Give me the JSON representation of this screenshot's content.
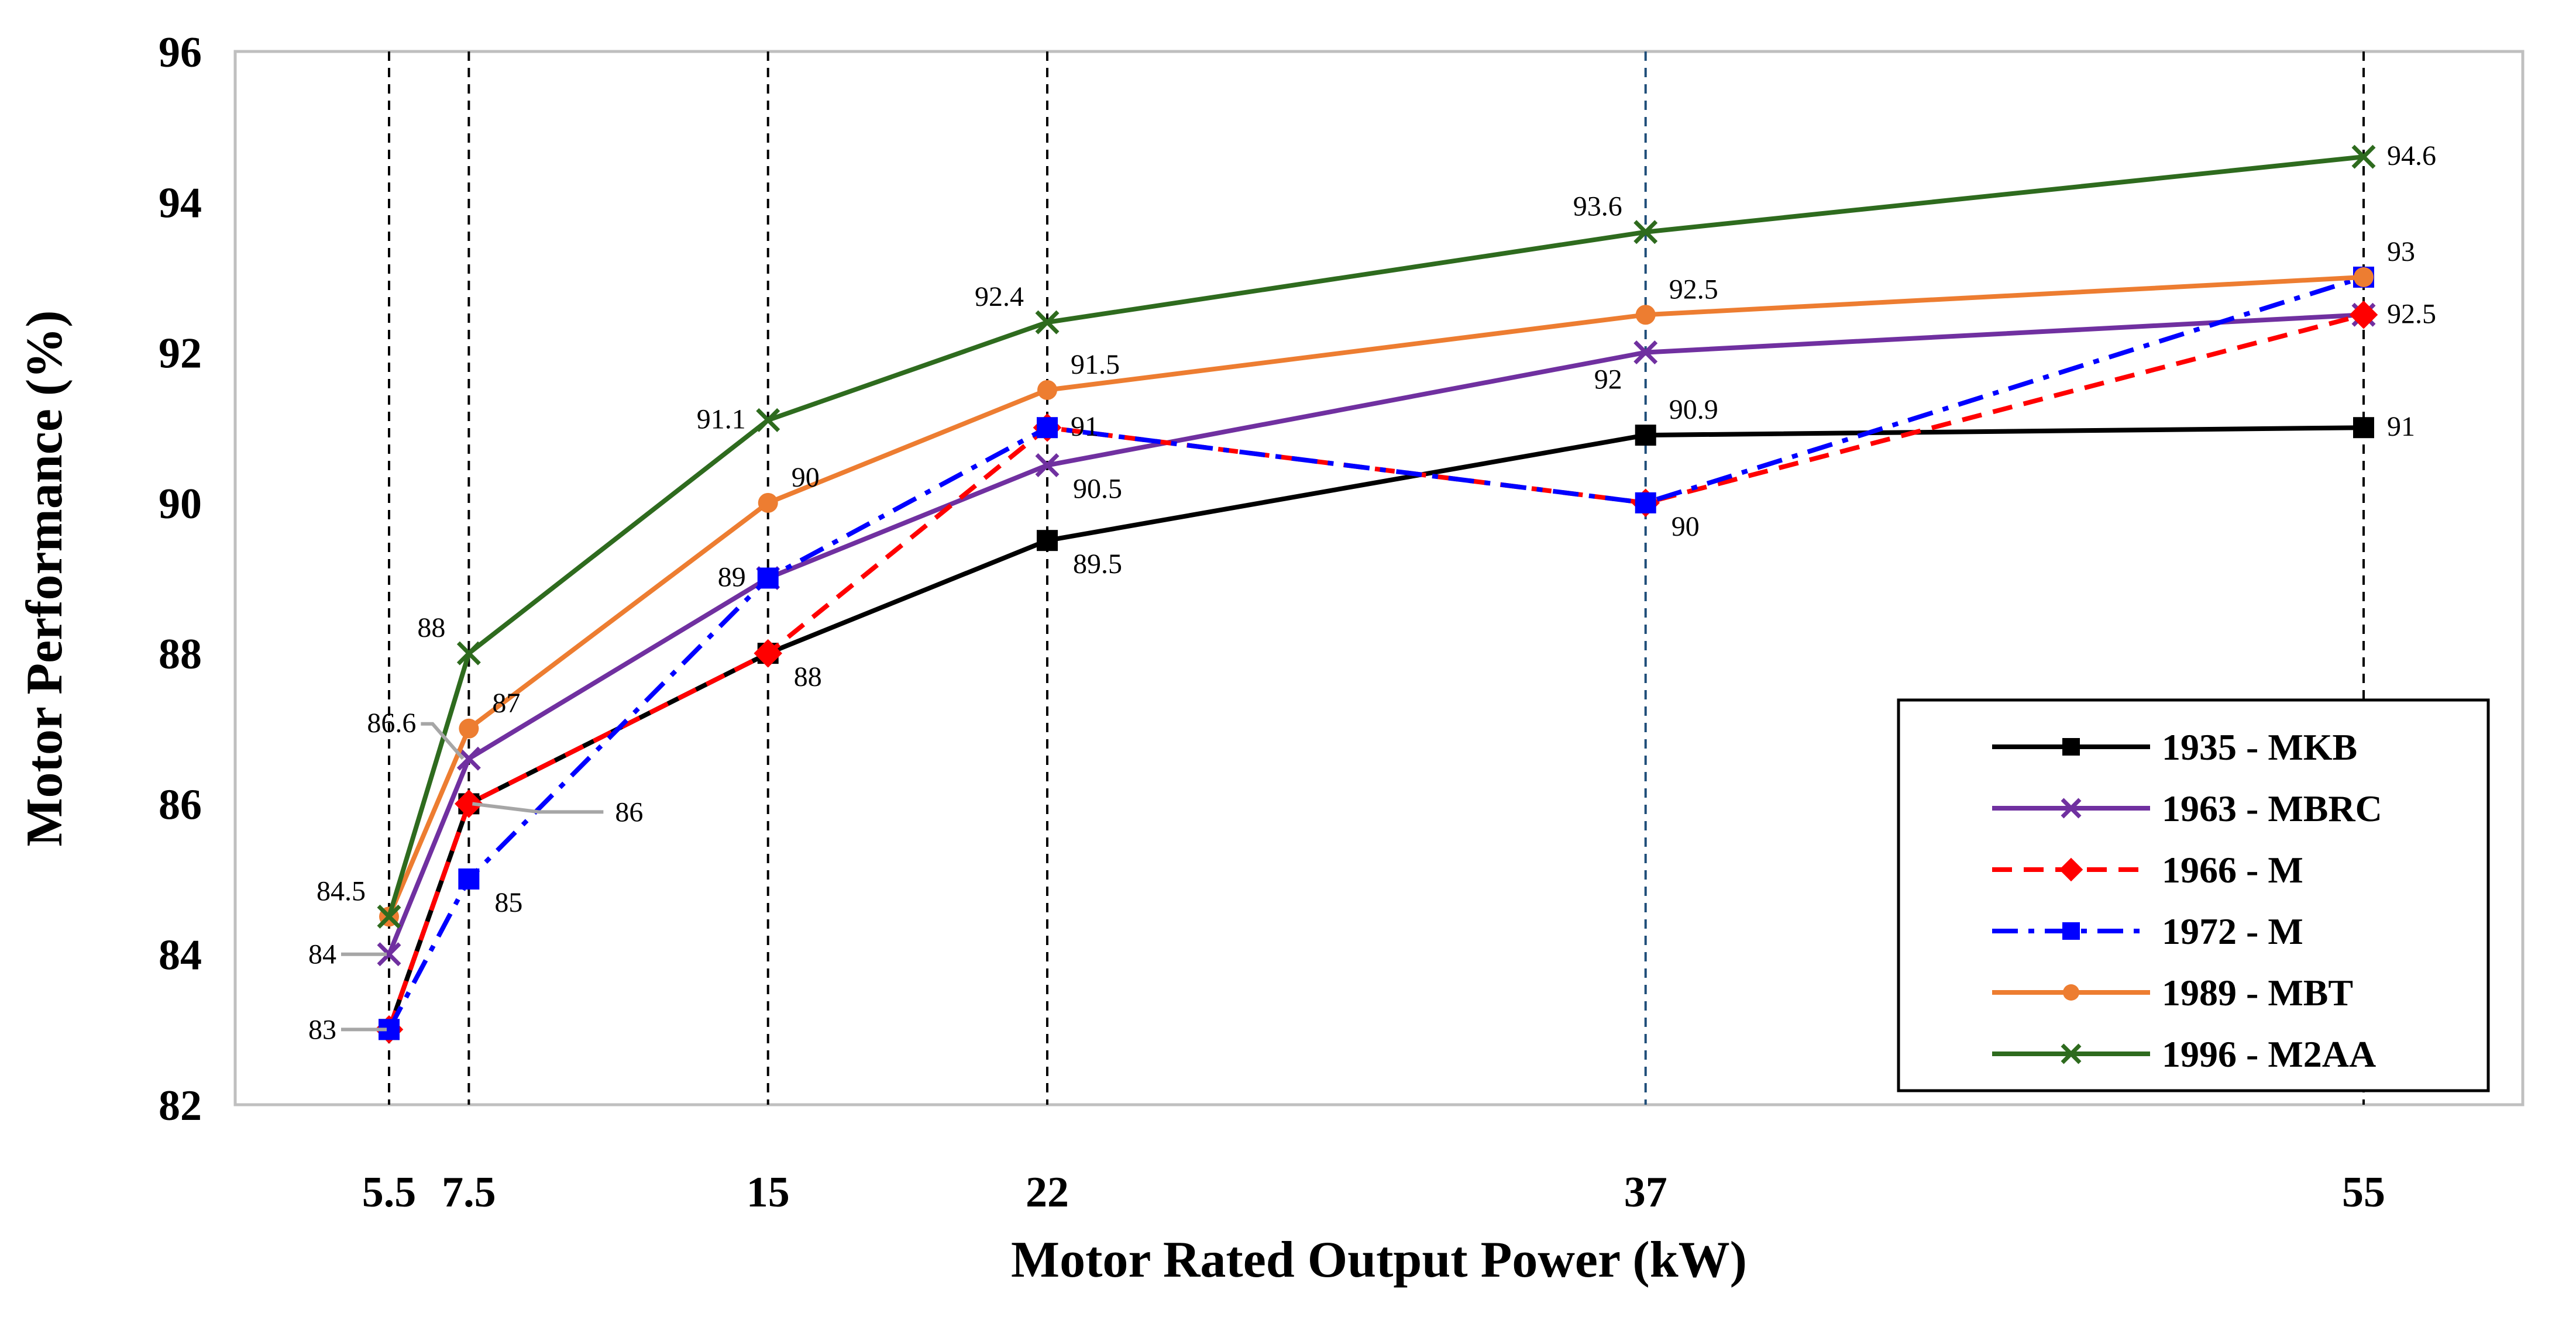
{
  "chart_data": {
    "type": "line",
    "title": "",
    "xlabel": "Motor Rated Output Power (kW)",
    "ylabel": "Motor Performance (%)",
    "categories": [
      "5.5",
      "7.5",
      "15",
      "22",
      "37",
      "55"
    ],
    "x": [
      5.5,
      7.5,
      15,
      22,
      37,
      55
    ],
    "ylim": [
      82,
      96
    ],
    "yticks": [
      "82",
      "84",
      "86",
      "88",
      "90",
      "92",
      "94",
      "96"
    ],
    "grid": "vertical",
    "legend_position": "bottom-right",
    "series": [
      {
        "name": "1935 - MKB",
        "color": "#000000",
        "dash": "solid",
        "marker": "square",
        "values": [
          83,
          86,
          88,
          89.5,
          90.9,
          91
        ]
      },
      {
        "name": "1963 - MBRC",
        "color": "#7030A0",
        "dash": "solid",
        "marker": "x",
        "values": [
          84,
          86.6,
          89,
          90.5,
          92,
          92.5
        ]
      },
      {
        "name": "1966 - M",
        "color": "#FF0000",
        "dash": "dashed",
        "marker": "diamond",
        "values": [
          83,
          86,
          88,
          91,
          90,
          92.5
        ]
      },
      {
        "name": "1972 - M",
        "color": "#0000FF",
        "dash": "dashdot",
        "marker": "square",
        "values": [
          83,
          85,
          89,
          91,
          90,
          93
        ]
      },
      {
        "name": "1989 - MBT",
        "color": "#ED7D31",
        "dash": "solid",
        "marker": "circle",
        "values": [
          84.5,
          87,
          90,
          91.5,
          92.5,
          93
        ]
      },
      {
        "name": "1996 - M2AA",
        "color": "#2E6B1E",
        "dash": "solid",
        "marker": "x",
        "values": [
          84.5,
          88,
          91.1,
          92.4,
          93.6,
          94.6
        ]
      }
    ],
    "data_labels": [
      {
        "text": "84.5",
        "x": 5.5,
        "y": 84.5,
        "pos": "left-up"
      },
      {
        "text": "84",
        "x": 5.5,
        "y": 84,
        "pos": "left-leader"
      },
      {
        "text": "83",
        "x": 5.5,
        "y": 83,
        "pos": "left-leader"
      },
      {
        "text": "88",
        "x": 7.5,
        "y": 88,
        "pos": "left-up"
      },
      {
        "text": "87",
        "x": 7.5,
        "y": 87,
        "pos": "right-up"
      },
      {
        "text": "86.6",
        "x": 7.5,
        "y": 86.6,
        "pos": "left-leader-up"
      },
      {
        "text": "86",
        "x": 7.5,
        "y": 86,
        "pos": "right-leader"
      },
      {
        "text": "85",
        "x": 7.5,
        "y": 85,
        "pos": "right-down"
      },
      {
        "text": "91.1",
        "x": 15,
        "y": 91.1,
        "pos": "left"
      },
      {
        "text": "90",
        "x": 15,
        "y": 90,
        "pos": "right-up"
      },
      {
        "text": "89",
        "x": 15,
        "y": 89,
        "pos": "left"
      },
      {
        "text": "88",
        "x": 15,
        "y": 88,
        "pos": "right-down"
      },
      {
        "text": "92.4",
        "x": 22,
        "y": 92.4,
        "pos": "left-up"
      },
      {
        "text": "91.5",
        "x": 22,
        "y": 91.5,
        "pos": "right-up"
      },
      {
        "text": "91",
        "x": 22,
        "y": 91,
        "pos": "right"
      },
      {
        "text": "90.5",
        "x": 22,
        "y": 90.5,
        "pos": "right-down"
      },
      {
        "text": "89.5",
        "x": 22,
        "y": 89.5,
        "pos": "right-down"
      },
      {
        "text": "93.6",
        "x": 37,
        "y": 93.6,
        "pos": "left-up"
      },
      {
        "text": "92.5",
        "x": 37,
        "y": 92.5,
        "pos": "right-up"
      },
      {
        "text": "92",
        "x": 37,
        "y": 92,
        "pos": "left-down"
      },
      {
        "text": "90.9",
        "x": 37,
        "y": 90.9,
        "pos": "right-up"
      },
      {
        "text": "90",
        "x": 37,
        "y": 90,
        "pos": "right-down"
      },
      {
        "text": "94.6",
        "x": 55,
        "y": 94.6,
        "pos": "right"
      },
      {
        "text": "93",
        "x": 55,
        "y": 93,
        "pos": "right-up"
      },
      {
        "text": "92.5",
        "x": 55,
        "y": 92.5,
        "pos": "right"
      },
      {
        "text": "91",
        "x": 55,
        "y": 91,
        "pos": "right"
      }
    ]
  }
}
